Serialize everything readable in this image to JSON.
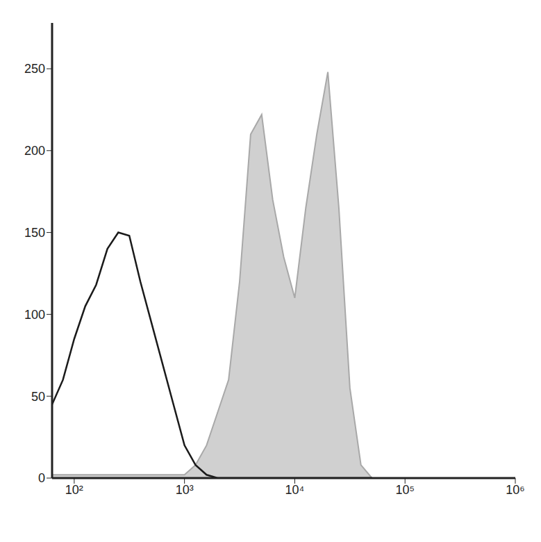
{
  "chart_data": {
    "type": "histogram_overlay",
    "log": "x",
    "grid": false,
    "x": [
      63,
      79,
      100,
      126,
      158,
      200,
      251,
      316,
      398,
      501,
      631,
      794,
      1000,
      1259,
      1585,
      1995,
      2512,
      3162,
      3981,
      5012,
      6310,
      7943,
      10000,
      12589,
      15849,
      19953,
      25119,
      31623,
      39811,
      50119
    ],
    "series": [
      {
        "color": "#1a1a1a",
        "type": "line",
        "values": [
          45,
          60,
          85,
          105,
          118,
          140,
          150,
          148,
          120,
          95,
          70,
          45,
          20,
          8,
          2,
          0,
          0,
          0,
          0,
          0,
          0,
          0,
          0,
          0,
          0,
          0,
          0,
          0,
          0,
          0
        ]
      },
      {
        "color": "#d0d0d0",
        "type": "area",
        "values": [
          2,
          2,
          2,
          2,
          2,
          2,
          2,
          2,
          2,
          2,
          2,
          2,
          2,
          8,
          20,
          40,
          60,
          120,
          210,
          222,
          170,
          135,
          110,
          165,
          210,
          248,
          165,
          55,
          8,
          0
        ]
      }
    ],
    "xlim": [
      63,
      1000000
    ],
    "xticks": [
      {
        "value": 100,
        "label": "10²"
      },
      {
        "value": 1000,
        "label": "10³"
      },
      {
        "value": 10000,
        "label": "10⁴"
      },
      {
        "value": 100000,
        "label": "10⁵"
      },
      {
        "value": 1000000,
        "label": "10⁶"
      }
    ],
    "ylim": [
      0,
      278
    ],
    "yticks": [
      0,
      50,
      100,
      150,
      200,
      250
    ]
  }
}
